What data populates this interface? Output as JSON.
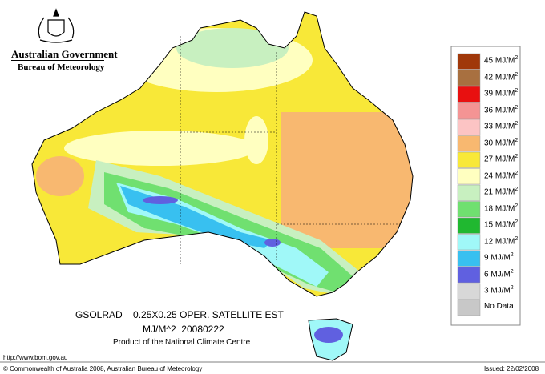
{
  "header": {
    "government": "Australian Government",
    "agency": "Bureau of Meteorology"
  },
  "caption": {
    "line1": "GSOLRAD    0.25X0.25 OPER. SATELLITE EST",
    "line2": "MJ/M^2  20080222",
    "line3": "Product of the National Climate Centre"
  },
  "legend": {
    "items": [
      {
        "label": "45 MJ/M",
        "superscript": "2",
        "color": "#a0380a"
      },
      {
        "label": "42 MJ/M",
        "superscript": "2",
        "color": "#a87040"
      },
      {
        "label": "39 MJ/M",
        "superscript": "2",
        "color": "#e81010"
      },
      {
        "label": "36 MJ/M",
        "superscript": "2",
        "color": "#f49494"
      },
      {
        "label": "33 MJ/M",
        "superscript": "2",
        "color": "#fcc4c4"
      },
      {
        "label": "30 MJ/M",
        "superscript": "2",
        "color": "#f8b870"
      },
      {
        "label": "27 MJ/M",
        "superscript": "2",
        "color": "#f8e838"
      },
      {
        "label": "24 MJ/M",
        "superscript": "2",
        "color": "#ffffc0"
      },
      {
        "label": "21 MJ/M",
        "superscript": "2",
        "color": "#c8f0c0"
      },
      {
        "label": "18 MJ/M",
        "superscript": "2",
        "color": "#70e070"
      },
      {
        "label": "15 MJ/M",
        "superscript": "2",
        "color": "#20b830"
      },
      {
        "label": "12 MJ/M",
        "superscript": "2",
        "color": "#a0f8f8"
      },
      {
        "label": "9 MJ/M",
        "superscript": "2",
        "color": "#38c0f0"
      },
      {
        "label": "6 MJ/M",
        "superscript": "2",
        "color": "#6060e0"
      },
      {
        "label": "3 MJ/M",
        "superscript": "2",
        "color": "#d8d8d8"
      }
    ],
    "no_data": {
      "label": "No Data",
      "color": "#c8c8c8"
    }
  },
  "footer": {
    "url": "http://www.bom.gov.au",
    "copyright": "© Commonwealth of Australia 2008, Australian Bureau of Meteorology",
    "issued": "Issued: 22/02/2008"
  }
}
